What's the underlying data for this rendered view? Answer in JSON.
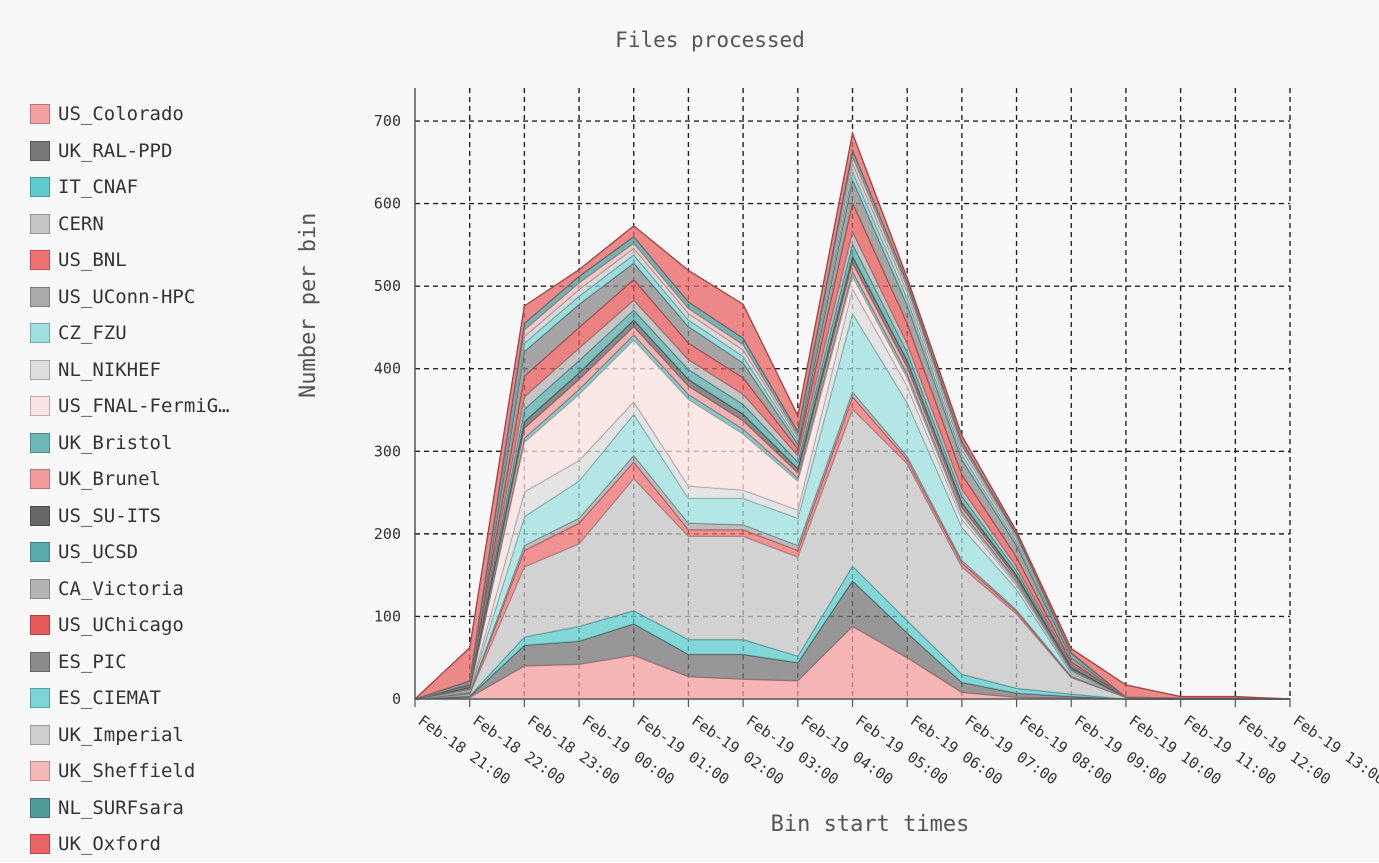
{
  "chart_data": {
    "type": "area",
    "stacked": true,
    "title": "Files processed",
    "xlabel": "Bin start times",
    "ylabel": "Number per bin",
    "ylim": [
      0,
      740
    ],
    "yticks": [
      0,
      100,
      200,
      300,
      400,
      500,
      600,
      700
    ],
    "grid": true,
    "legend_position": "left",
    "x": [
      "Feb-18 21:00",
      "Feb-18 22:00",
      "Feb-18 23:00",
      "Feb-19 00:00",
      "Feb-19 01:00",
      "Feb-19 02:00",
      "Feb-19 03:00",
      "Feb-19 04:00",
      "Feb-19 05:00",
      "Feb-19 06:00",
      "Feb-19 07:00",
      "Feb-19 08:00",
      "Feb-19 09:00",
      "Feb-19 10:00",
      "Feb-19 11:00",
      "Feb-19 12:00",
      "Feb-19 13:00"
    ],
    "series": [
      {
        "name": "US_Colorado",
        "color": "#f5a0a0",
        "values": [
          0,
          2,
          40,
          42,
          53,
          27,
          24,
          22,
          88,
          50,
          8,
          2,
          1,
          0,
          0,
          0,
          0
        ]
      },
      {
        "name": "UK_RAL-PPD",
        "color": "#777777",
        "values": [
          0,
          1,
          25,
          28,
          38,
          27,
          30,
          22,
          55,
          30,
          12,
          5,
          2,
          0,
          0,
          0,
          0
        ]
      },
      {
        "name": "IT_CNAF",
        "color": "#5ecccc",
        "values": [
          0,
          1,
          10,
          18,
          16,
          18,
          18,
          8,
          18,
          15,
          10,
          6,
          3,
          0,
          0,
          0,
          0
        ]
      },
      {
        "name": "CERN",
        "color": "#c6c6c6",
        "values": [
          0,
          2,
          85,
          100,
          160,
          125,
          125,
          120,
          190,
          190,
          130,
          90,
          20,
          2,
          1,
          1,
          0
        ]
      },
      {
        "name": "US_BNL",
        "color": "#f07070",
        "values": [
          0,
          1,
          20,
          25,
          20,
          8,
          8,
          8,
          15,
          5,
          5,
          3,
          1,
          0,
          0,
          0,
          0
        ]
      },
      {
        "name": "US_UConn-HPC",
        "color": "#aaaaaa",
        "values": [
          0,
          1,
          6,
          6,
          8,
          8,
          6,
          6,
          6,
          4,
          3,
          2,
          1,
          0,
          0,
          0,
          0
        ]
      },
      {
        "name": "CZ_FZU",
        "color": "#9ee0e0",
        "values": [
          0,
          1,
          35,
          45,
          50,
          30,
          32,
          33,
          95,
          65,
          40,
          25,
          3,
          0,
          0,
          0,
          0
        ]
      },
      {
        "name": "NL_NIKHEF",
        "color": "#dddddd",
        "values": [
          0,
          1,
          30,
          25,
          15,
          15,
          10,
          10,
          30,
          20,
          10,
          5,
          2,
          0,
          0,
          0,
          0
        ]
      },
      {
        "name": "US_FNAL-FermiG…",
        "color": "#fde2e2",
        "values": [
          0,
          1,
          60,
          80,
          75,
          105,
          68,
          35,
          15,
          10,
          5,
          2,
          1,
          0,
          0,
          0,
          0
        ]
      },
      {
        "name": "UK_Bristol",
        "color": "#6fb6b6",
        "values": [
          0,
          1,
          5,
          6,
          6,
          6,
          6,
          4,
          6,
          5,
          4,
          3,
          1,
          0,
          0,
          0,
          0
        ]
      },
      {
        "name": "UK_Brunel",
        "color": "#f39a9a",
        "values": [
          0,
          1,
          12,
          12,
          10,
          10,
          10,
          6,
          10,
          8,
          5,
          3,
          1,
          0,
          0,
          0,
          0
        ]
      },
      {
        "name": "US_SU-ITS",
        "color": "#666666",
        "values": [
          0,
          1,
          8,
          8,
          8,
          8,
          8,
          5,
          8,
          8,
          6,
          4,
          2,
          0,
          0,
          0,
          0
        ]
      },
      {
        "name": "US_UCSD",
        "color": "#5aabab",
        "values": [
          0,
          1,
          15,
          15,
          12,
          12,
          12,
          8,
          15,
          10,
          8,
          5,
          2,
          0,
          0,
          0,
          0
        ]
      },
      {
        "name": "CA_Victoria",
        "color": "#b4b4b4",
        "values": [
          0,
          1,
          15,
          15,
          12,
          12,
          12,
          8,
          15,
          10,
          8,
          5,
          2,
          0,
          0,
          0,
          0
        ]
      },
      {
        "name": "US_UChicago",
        "color": "#e85a5a",
        "values": [
          0,
          1,
          25,
          25,
          25,
          20,
          20,
          8,
          35,
          25,
          18,
          12,
          3,
          0,
          0,
          0,
          0
        ]
      },
      {
        "name": "ES_PIC",
        "color": "#8a8a8a",
        "values": [
          0,
          1,
          30,
          28,
          20,
          20,
          18,
          6,
          28,
          22,
          18,
          14,
          5,
          0,
          0,
          0,
          0
        ]
      },
      {
        "name": "ES_CIEMAT",
        "color": "#7dd4d4",
        "values": [
          0,
          1,
          10,
          10,
          10,
          8,
          8,
          4,
          10,
          8,
          6,
          4,
          2,
          0,
          0,
          0,
          0
        ]
      },
      {
        "name": "UK_Imperial",
        "color": "#cfcfcf",
        "values": [
          0,
          1,
          8,
          8,
          8,
          8,
          8,
          4,
          10,
          8,
          6,
          4,
          2,
          0,
          0,
          0,
          0
        ]
      },
      {
        "name": "UK_Sheffield",
        "color": "#f7b8b8",
        "values": [
          0,
          1,
          8,
          8,
          6,
          6,
          6,
          3,
          8,
          6,
          5,
          3,
          1,
          0,
          0,
          0,
          0
        ]
      },
      {
        "name": "NL_SURFsara",
        "color": "#4f9a9a",
        "values": [
          0,
          1,
          8,
          8,
          8,
          8,
          8,
          4,
          8,
          6,
          5,
          3,
          1,
          0,
          0,
          0,
          0
        ]
      },
      {
        "name": "UK_Oxford",
        "color": "#ea6464",
        "values": [
          0,
          40,
          21,
          8,
          13,
          38,
          41,
          19,
          20,
          5,
          7,
          3,
          5,
          15,
          2,
          2,
          0
        ]
      }
    ]
  }
}
